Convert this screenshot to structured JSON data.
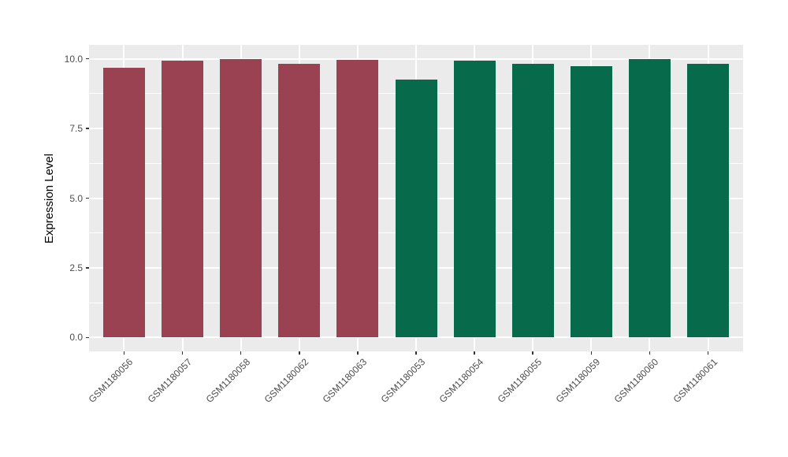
{
  "figure": {
    "background": "#FFFFFF",
    "panel_background": "#EBEBEB",
    "grid_color": "#FFFFFF",
    "tick_color": "#333333",
    "tick_label_color": "#4D4D4D",
    "axis_title_color": "#000000"
  },
  "chart_data": {
    "type": "bar",
    "title": "",
    "xlabel": "",
    "ylabel": "Expression Level",
    "ylim": [
      -0.5,
      10.5
    ],
    "yticks": [
      0.0,
      2.5,
      5.0,
      7.5,
      10.0
    ],
    "grid": true,
    "legend_position": "none",
    "categories": [
      "GSM1180056",
      "GSM1180057",
      "GSM1180058",
      "GSM1180062",
      "GSM1180063",
      "GSM1180053",
      "GSM1180054",
      "GSM1180055",
      "GSM1180059",
      "GSM1180060",
      "GSM1180061"
    ],
    "values": [
      9.67,
      9.93,
      10.0,
      9.81,
      9.96,
      9.26,
      9.93,
      9.82,
      9.73,
      10.0,
      9.82
    ],
    "groups": [
      "group1",
      "group1",
      "group1",
      "group1",
      "group1",
      "group2",
      "group2",
      "group2",
      "group2",
      "group2",
      "group2"
    ],
    "group_colors": {
      "group1": "#9B4252",
      "group2": "#066A4B"
    }
  }
}
